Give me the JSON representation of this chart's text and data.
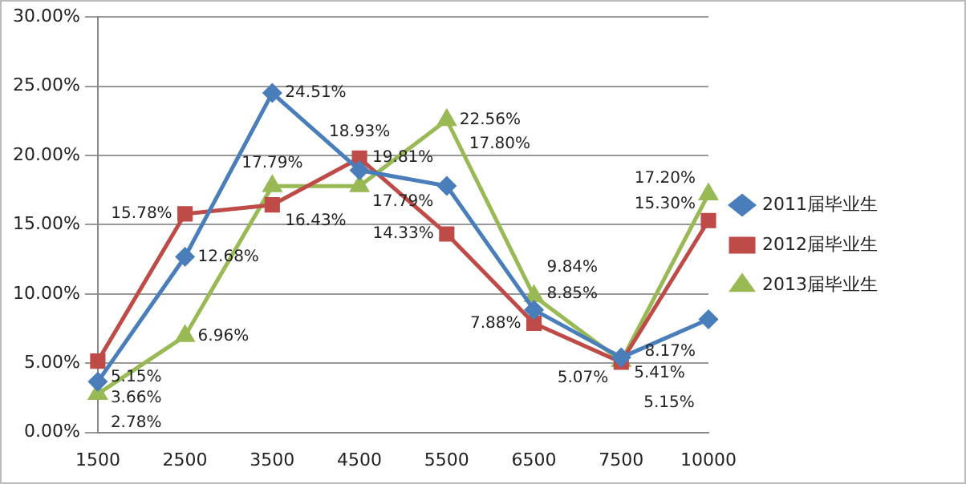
{
  "chart_data": {
    "type": "line",
    "categories": [
      "1500",
      "2500",
      "3500",
      "4500",
      "5500",
      "6500",
      "7500",
      "10000"
    ],
    "series": [
      {
        "name": "2011届毕业生",
        "color": "#4a7ebb",
        "marker": "diamond",
        "values": [
          3.66,
          12.68,
          24.51,
          18.93,
          17.8,
          8.85,
          5.41,
          8.17
        ],
        "value_labels": [
          "3.66%",
          "12.68%",
          "24.51%",
          "18.93%",
          "17.80%",
          "8.85%",
          "5.41%",
          "8.17%"
        ]
      },
      {
        "name": "2012届毕业生",
        "color": "#be4b48",
        "marker": "square",
        "values": [
          5.15,
          15.78,
          16.43,
          19.81,
          14.33,
          7.88,
          5.07,
          15.3
        ],
        "value_labels": [
          "5.15%",
          "15.78%",
          "16.43%",
          "19.81%",
          "14.33%",
          "7.88%",
          "5.07%",
          "15.30%"
        ]
      },
      {
        "name": "2013届毕业生",
        "color": "#98b954",
        "marker": "triangle",
        "values": [
          2.78,
          6.96,
          17.79,
          17.79,
          22.56,
          9.84,
          5.15,
          17.2
        ],
        "value_labels": [
          "2.78%",
          "6.96%",
          "17.79%",
          "17.79%",
          "22.56%",
          "9.84%",
          "5.15%",
          "17.20%"
        ]
      }
    ],
    "ylim": [
      0,
      30
    ],
    "yticks": [
      {
        "value": 0,
        "label": "0.00%"
      },
      {
        "value": 5,
        "label": "5.00%"
      },
      {
        "value": 10,
        "label": "10.00%"
      },
      {
        "value": 15,
        "label": "15.00%"
      },
      {
        "value": 20,
        "label": "20.00%"
      },
      {
        "value": 25,
        "label": "25.00%"
      },
      {
        "value": 30,
        "label": "30.00%"
      }
    ],
    "grid": "y",
    "legend": "right"
  }
}
